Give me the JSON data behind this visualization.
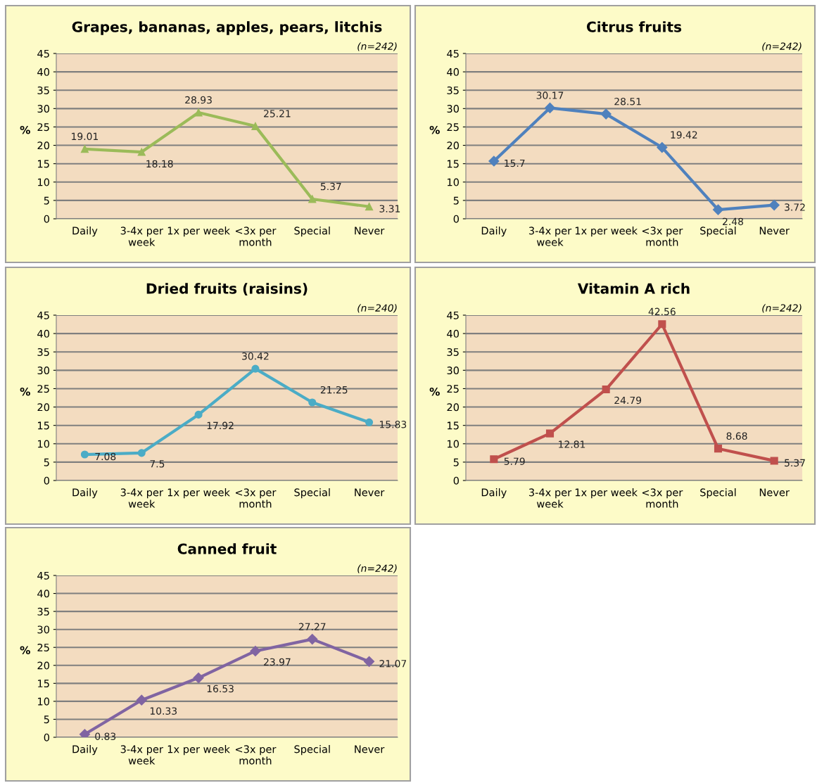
{
  "chart_data": [
    {
      "type": "line",
      "title": "Grapes, bananas, apples, pears, litchis",
      "ylabel": "%",
      "annotations": [
        "(n=242)"
      ],
      "categories": [
        "Daily",
        "3-4x per\nweek",
        "1x per week",
        "<3x per\nmonth",
        "Special",
        "Never"
      ],
      "series": [
        {
          "color": "#9bbb59",
          "values": [
            19.01,
            18.18,
            28.93,
            25.21,
            5.37,
            3.31
          ]
        }
      ],
      "marker": "triangle",
      "data_labels": true,
      "ylim": [
        0,
        45
      ],
      "yticks": [
        0,
        5,
        10,
        15,
        20,
        25,
        30,
        35,
        40,
        45
      ],
      "grid": "y"
    },
    {
      "type": "line",
      "title": "Citrus fruits",
      "ylabel": "%",
      "annotations": [
        "(n=242)"
      ],
      "categories": [
        "Daily",
        "3-4x per\nweek",
        "1x per week",
        "<3x per\nmonth",
        "Special",
        "Never"
      ],
      "series": [
        {
          "color": "#4f81bd",
          "values": [
            15.7,
            30.17,
            28.51,
            19.42,
            2.48,
            3.72
          ]
        }
      ],
      "marker": "diamond",
      "data_labels": true,
      "ylim": [
        0,
        45
      ],
      "yticks": [
        0,
        5,
        10,
        15,
        20,
        25,
        30,
        35,
        40,
        45
      ],
      "grid": "y"
    },
    {
      "type": "line",
      "title": "Dried fruits (raisins)",
      "ylabel": "%",
      "annotations": [
        "(n=240)"
      ],
      "categories": [
        "Daily",
        "3-4x per\nweek",
        "1x per week",
        "<3x per\nmonth",
        "Special",
        "Never"
      ],
      "series": [
        {
          "color": "#4bacc6",
          "values": [
            7.08,
            7.5,
            17.92,
            30.42,
            21.25,
            15.83
          ]
        }
      ],
      "marker": "circle",
      "data_labels": true,
      "ylim": [
        0,
        45
      ],
      "yticks": [
        0,
        5,
        10,
        15,
        20,
        25,
        30,
        35,
        40,
        45
      ],
      "grid": "y"
    },
    {
      "type": "line",
      "title": "Vitamin A rich",
      "ylabel": "%",
      "annotations": [
        "(n=242)"
      ],
      "categories": [
        "Daily",
        "3-4x per\nweek",
        "1x per week",
        "<3x per\nmonth",
        "Special",
        "Never"
      ],
      "series": [
        {
          "color": "#c0504d",
          "values": [
            5.79,
            12.81,
            24.79,
            42.56,
            8.68,
            5.37
          ]
        }
      ],
      "marker": "square",
      "data_labels": true,
      "ylim": [
        0,
        45
      ],
      "yticks": [
        0,
        5,
        10,
        15,
        20,
        25,
        30,
        35,
        40,
        45
      ],
      "grid": "y"
    },
    {
      "type": "line",
      "title": "Canned fruit",
      "ylabel": "%",
      "annotations": [
        "(n=242)"
      ],
      "categories": [
        "Daily",
        "3-4x per\nweek",
        "1x per week",
        "<3x per\nmonth",
        "Special",
        "Never"
      ],
      "series": [
        {
          "color": "#8064a2",
          "values": [
            0.83,
            10.33,
            16.53,
            23.97,
            27.27,
            21.07
          ]
        }
      ],
      "marker": "diamond",
      "data_labels": true,
      "ylim": [
        0,
        45
      ],
      "yticks": [
        0,
        5,
        10,
        15,
        20,
        25,
        30,
        35,
        40,
        45
      ],
      "grid": "y"
    }
  ]
}
